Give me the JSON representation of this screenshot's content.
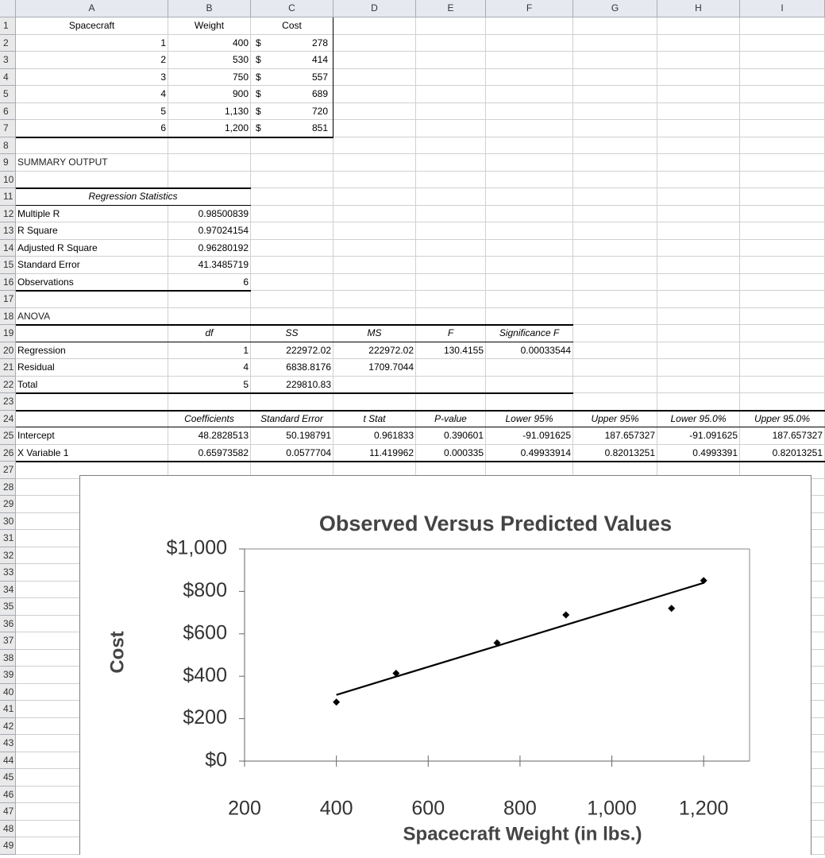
{
  "sheet": {
    "columns": [
      "A",
      "B",
      "C",
      "D",
      "E",
      "F",
      "G",
      "H",
      "I"
    ],
    "row_numbers": [
      1,
      2,
      3,
      4,
      5,
      6,
      7,
      8,
      9,
      10,
      11,
      12,
      13,
      14,
      15,
      16,
      17,
      18,
      19,
      20,
      21,
      22,
      23,
      24,
      25,
      26,
      27,
      28,
      29,
      30,
      31,
      32,
      33,
      34,
      35,
      36,
      37,
      38,
      39,
      40,
      41,
      42,
      43,
      44,
      45,
      46,
      47,
      48,
      49
    ],
    "rows": {
      "1": {
        "A": "Spacecraft",
        "B": "Weight",
        "C": "Cost"
      },
      "2": {
        "A": "1",
        "B": "400",
        "C": {
          "symbol": "$",
          "amount": "278"
        }
      },
      "3": {
        "A": "2",
        "B": "530",
        "C": {
          "symbol": "$",
          "amount": "414"
        }
      },
      "4": {
        "A": "3",
        "B": "750",
        "C": {
          "symbol": "$",
          "amount": "557"
        }
      },
      "5": {
        "A": "4",
        "B": "900",
        "C": {
          "symbol": "$",
          "amount": "689"
        }
      },
      "6": {
        "A": "5",
        "B": "1,130",
        "C": {
          "symbol": "$",
          "amount": "720"
        }
      },
      "7": {
        "A": "6",
        "B": "1,200",
        "C": {
          "symbol": "$",
          "amount": "851"
        }
      },
      "9": {
        "A": "SUMMARY OUTPUT"
      },
      "11": {
        "A": "Regression Statistics"
      },
      "12": {
        "A": "Multiple R",
        "B": "0.98500839"
      },
      "13": {
        "A": "R Square",
        "B": "0.97024154"
      },
      "14": {
        "A": "Adjusted R Square",
        "B": "0.96280192"
      },
      "15": {
        "A": "Standard Error",
        "B": "41.3485719"
      },
      "16": {
        "A": "Observations",
        "B": "6"
      },
      "18": {
        "A": "ANOVA"
      },
      "19": {
        "B": "df",
        "C": "SS",
        "D": "MS",
        "E": "F",
        "F": "Significance F"
      },
      "20": {
        "A": "Regression",
        "B": "1",
        "C": "222972.02",
        "D": "222972.02",
        "E": "130.4155",
        "F": "0.00033544"
      },
      "21": {
        "A": "Residual",
        "B": "4",
        "C": "6838.8176",
        "D": "1709.7044"
      },
      "22": {
        "A": "Total",
        "B": "5",
        "C": "229810.83"
      },
      "24": {
        "B": "Coefficients",
        "C": "Standard Error",
        "D": "t Stat",
        "E": "P-value",
        "F": "Lower 95%",
        "G": "Upper 95%",
        "H": "Lower 95.0%",
        "I": "Upper 95.0%"
      },
      "25": {
        "A": "Intercept",
        "B": "48.2828513",
        "C": "50.198791",
        "D": "0.961833",
        "E": "0.390601",
        "F": "-91.091625",
        "G": "187.657327",
        "H": "-91.091625",
        "I": "187.657327"
      },
      "26": {
        "A": "X Variable 1",
        "B": "0.65973582",
        "C": "0.0577704",
        "D": "11.419962",
        "E": "0.000335",
        "F": "0.49933914",
        "G": "0.82013251",
        "H": "0.4993391",
        "I": "0.82013251"
      }
    }
  },
  "chart_data": {
    "type": "scatter",
    "title": "Observed Versus Predicted Values",
    "x_label": "Spacecraft Weight (in lbs.)",
    "y_label": "Cost",
    "x": [
      400,
      530,
      750,
      900,
      1130,
      1200
    ],
    "series": [
      {
        "color": "#000000",
        "marker": "diamond",
        "values": [
          278,
          414,
          557,
          689,
          720,
          851
        ]
      },
      {
        "color": "#000000",
        "marker": "line",
        "values": [
          312,
          398,
          543,
          642,
          794,
          840
        ]
      }
    ],
    "xlim": [
      200,
      1300
    ],
    "xticks": [
      200,
      400,
      600,
      800,
      {
        "value": 1000,
        "label": "1,000"
      },
      {
        "value": 1200,
        "label": "1,200"
      }
    ],
    "ylim": [
      0,
      1000
    ],
    "yticks": [
      {
        "value": 0,
        "label": "$0"
      },
      {
        "value": 200,
        "label": "$200"
      },
      {
        "value": 400,
        "label": "$400"
      },
      {
        "value": 600,
        "label": "$600"
      },
      {
        "value": 800,
        "label": "$800"
      },
      {
        "value": 1000,
        "label": "$1,000"
      }
    ],
    "grid": false
  }
}
